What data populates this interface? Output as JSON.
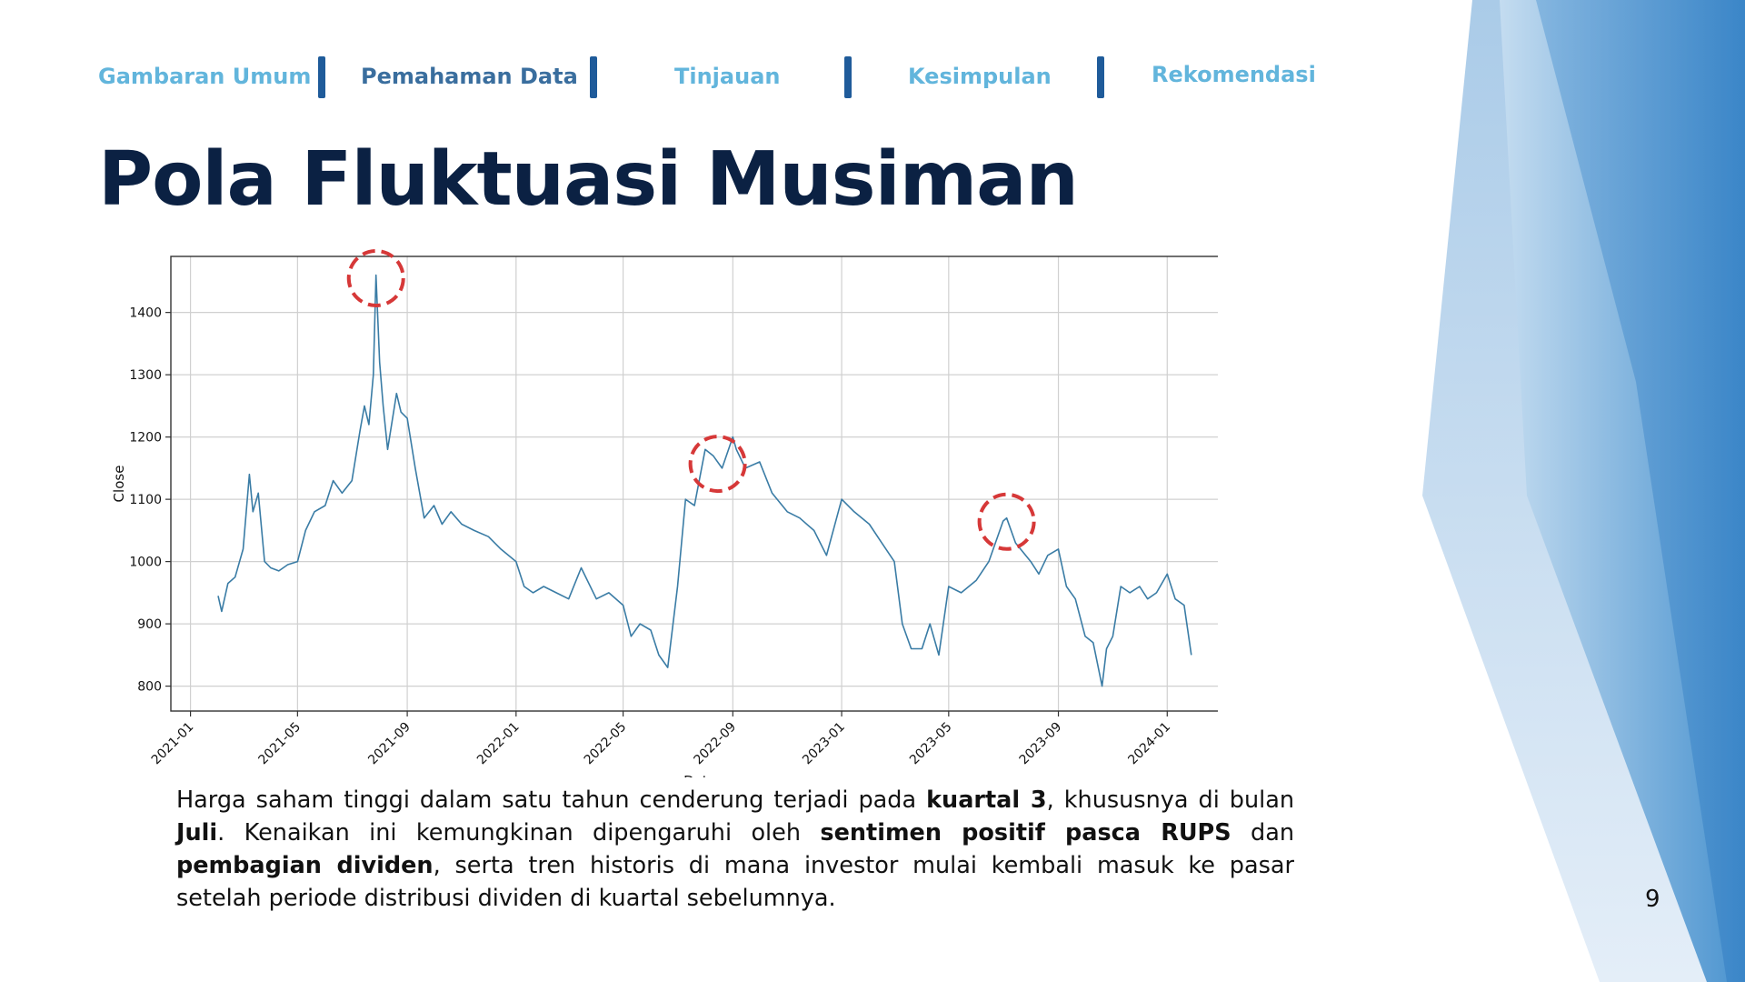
{
  "nav": {
    "items": [
      {
        "label": "Gambaran Umum",
        "active": false
      },
      {
        "label": "Pemahaman Data",
        "active": true
      },
      {
        "label": "Tinjauan",
        "active": false
      },
      {
        "label": "Kesimpulan",
        "active": false
      },
      {
        "label": "Rekomendasi",
        "active": false
      }
    ]
  },
  "title": "Pola Fluktuasi Musiman",
  "description": {
    "p1": "Harga saham tinggi dalam satu tahun cenderung terjadi pada ",
    "b1": "kuartal 3",
    "p2": ", khususnya di bulan ",
    "b2": "Juli",
    "p3": ". Kenaikan ini kemungkinan dipengaruhi oleh ",
    "b3": "sentimen positif pasca RUPS",
    "p4": " dan ",
    "b4": "pembagian dividen",
    "p5": ", serta tren historis di mana investor mulai kembali masuk ke pasar setelah periode distribusi dividen di kuartal sebelumnya."
  },
  "page_number": "9",
  "colors": {
    "line": "#3a7ca5",
    "highlight": "#d63838",
    "title": "#0b2143",
    "nav_active": "#3a6e9e",
    "nav_inactive": "#62b5dc",
    "nav_separator": "#1f5b9a"
  },
  "chart_data": {
    "type": "line",
    "xlabel": "Date",
    "ylabel": "Close",
    "x_ticks": [
      "2021-01",
      "2021-05",
      "2021-09",
      "2022-01",
      "2022-05",
      "2022-09",
      "2023-01",
      "2023-05",
      "2023-09",
      "2024-01"
    ],
    "y_ticks": [
      800,
      900,
      1000,
      1100,
      1200,
      1300,
      1400
    ],
    "xlim": [
      "2020-12-10",
      "2024-03-10"
    ],
    "ylim": [
      760,
      1490
    ],
    "grid": true,
    "series": [
      {
        "x": [
          "2021-02-01",
          "2021-02-05",
          "2021-02-12",
          "2021-02-20",
          "2021-03-01",
          "2021-03-08",
          "2021-03-12",
          "2021-03-18",
          "2021-03-25",
          "2021-04-01",
          "2021-04-10",
          "2021-04-20",
          "2021-05-01",
          "2021-05-10",
          "2021-05-20",
          "2021-06-01",
          "2021-06-10",
          "2021-06-20",
          "2021-07-01",
          "2021-07-10",
          "2021-07-15",
          "2021-07-20",
          "2021-07-25",
          "2021-07-28",
          "2021-08-01",
          "2021-08-05",
          "2021-08-10",
          "2021-08-20",
          "2021-08-25",
          "2021-09-01",
          "2021-09-10",
          "2021-09-20",
          "2021-10-01",
          "2021-10-10",
          "2021-10-20",
          "2021-11-01",
          "2021-11-15",
          "2021-12-01",
          "2021-12-15",
          "2022-01-01",
          "2022-01-10",
          "2022-01-20",
          "2022-02-01",
          "2022-02-15",
          "2022-03-01",
          "2022-03-15",
          "2022-04-01",
          "2022-04-15",
          "2022-05-01",
          "2022-05-10",
          "2022-05-20",
          "2022-06-01",
          "2022-06-10",
          "2022-06-20",
          "2022-07-01",
          "2022-07-10",
          "2022-07-20",
          "2022-08-01",
          "2022-08-10",
          "2022-08-20",
          "2022-09-01",
          "2022-09-05",
          "2022-09-15",
          "2022-10-01",
          "2022-10-15",
          "2022-11-01",
          "2022-11-15",
          "2022-12-01",
          "2022-12-15",
          "2023-01-01",
          "2023-01-15",
          "2023-02-01",
          "2023-02-15",
          "2023-03-01",
          "2023-03-10",
          "2023-03-20",
          "2023-04-01",
          "2023-04-10",
          "2023-04-20",
          "2023-05-01",
          "2023-05-15",
          "2023-06-01",
          "2023-06-15",
          "2023-07-01",
          "2023-07-05",
          "2023-07-15",
          "2023-08-01",
          "2023-08-10",
          "2023-08-20",
          "2023-09-01",
          "2023-09-10",
          "2023-09-20",
          "2023-10-01",
          "2023-10-10",
          "2023-10-20",
          "2023-10-25",
          "2023-11-01",
          "2023-11-10",
          "2023-11-20",
          "2023-12-01",
          "2023-12-10",
          "2023-12-20",
          "2024-01-01",
          "2024-01-10",
          "2024-01-20",
          "2024-01-28"
        ],
        "y": [
          945,
          920,
          965,
          975,
          1020,
          1140,
          1080,
          1110,
          1000,
          990,
          985,
          995,
          1000,
          1050,
          1080,
          1090,
          1130,
          1110,
          1130,
          1210,
          1250,
          1220,
          1300,
          1460,
          1320,
          1250,
          1180,
          1270,
          1240,
          1230,
          1150,
          1070,
          1090,
          1060,
          1080,
          1060,
          1050,
          1040,
          1020,
          1000,
          960,
          950,
          960,
          950,
          940,
          990,
          940,
          950,
          930,
          880,
          900,
          890,
          850,
          830,
          960,
          1100,
          1090,
          1180,
          1170,
          1150,
          1200,
          1180,
          1150,
          1160,
          1110,
          1080,
          1070,
          1050,
          1010,
          1100,
          1080,
          1060,
          1030,
          1000,
          900,
          860,
          860,
          900,
          850,
          960,
          950,
          970,
          1000,
          1065,
          1070,
          1030,
          1000,
          980,
          1010,
          1020,
          960,
          940,
          880,
          870,
          800,
          860,
          880,
          960,
          950,
          960,
          940,
          950,
          980,
          940,
          930,
          850
        ]
      }
    ],
    "highlights": [
      {
        "x": "2021-07-28",
        "y": 1455
      },
      {
        "x": "2022-08-15",
        "y": 1157
      },
      {
        "x": "2023-07-05",
        "y": 1064
      }
    ]
  }
}
